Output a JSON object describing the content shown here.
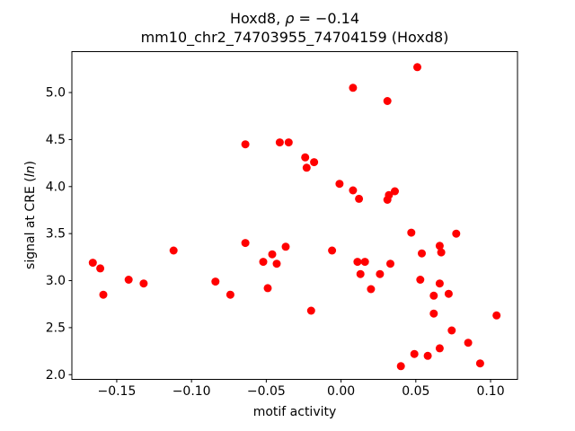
{
  "chart_data": {
    "type": "scatter",
    "title": {
      "line1_prefix": "Hoxd8, ",
      "line1_rho": "ρ",
      "line1_suffix": " = −0.14",
      "line2": "mm10_chr2_74703955_74704159 (Hoxd8)"
    },
    "xlabel": "motif activity",
    "ylabel_prefix": "signal at CRE (",
    "ylabel_italic": "ln",
    "ylabel_suffix": ")",
    "marker_color": "#ff0000",
    "axis_color": "#000000",
    "background_color": "#ffffff",
    "grid": false,
    "legend": false,
    "xlim": [
      -0.18,
      0.118
    ],
    "ylim": [
      1.95,
      5.435
    ],
    "x_ticks": [
      {
        "value": -0.15,
        "label": "−0.15"
      },
      {
        "value": -0.1,
        "label": "−0.10"
      },
      {
        "value": -0.05,
        "label": "−0.05"
      },
      {
        "value": 0.0,
        "label": "0.00"
      },
      {
        "value": 0.05,
        "label": "0.05"
      },
      {
        "value": 0.1,
        "label": "0.10"
      }
    ],
    "y_ticks": [
      {
        "value": 2.0,
        "label": "2.0"
      },
      {
        "value": 2.5,
        "label": "2.5"
      },
      {
        "value": 3.0,
        "label": "3.0"
      },
      {
        "value": 3.5,
        "label": "3.5"
      },
      {
        "value": 4.0,
        "label": "4.0"
      },
      {
        "value": 4.5,
        "label": "4.5"
      },
      {
        "value": 5.0,
        "label": "5.0"
      }
    ],
    "points": [
      [
        0.051,
        5.27
      ],
      [
        0.008,
        5.05
      ],
      [
        0.031,
        4.91
      ],
      [
        -0.064,
        4.45
      ],
      [
        -0.041,
        4.47
      ],
      [
        -0.035,
        4.47
      ],
      [
        -0.024,
        4.31
      ],
      [
        -0.018,
        4.26
      ],
      [
        -0.023,
        4.2
      ],
      [
        -0.001,
        4.03
      ],
      [
        0.008,
        3.96
      ],
      [
        0.012,
        3.87
      ],
      [
        0.036,
        3.95
      ],
      [
        0.032,
        3.91
      ],
      [
        0.031,
        3.86
      ],
      [
        -0.166,
        3.19
      ],
      [
        -0.161,
        3.13
      ],
      [
        -0.159,
        2.85
      ],
      [
        -0.142,
        3.01
      ],
      [
        -0.132,
        2.97
      ],
      [
        -0.112,
        3.32
      ],
      [
        -0.084,
        2.99
      ],
      [
        -0.074,
        2.85
      ],
      [
        -0.064,
        3.4
      ],
      [
        -0.052,
        3.2
      ],
      [
        -0.046,
        3.28
      ],
      [
        -0.043,
        3.18
      ],
      [
        -0.049,
        2.92
      ],
      [
        -0.037,
        3.36
      ],
      [
        -0.006,
        3.32
      ],
      [
        0.011,
        3.2
      ],
      [
        0.016,
        3.2
      ],
      [
        0.033,
        3.18
      ],
      [
        0.013,
        3.07
      ],
      [
        0.026,
        3.07
      ],
      [
        0.02,
        2.91
      ],
      [
        -0.02,
        2.68
      ],
      [
        0.047,
        3.51
      ],
      [
        0.077,
        3.5
      ],
      [
        0.066,
        3.37
      ],
      [
        0.067,
        3.3
      ],
      [
        0.054,
        3.29
      ],
      [
        0.053,
        3.01
      ],
      [
        0.066,
        2.97
      ],
      [
        0.062,
        2.84
      ],
      [
        0.072,
        2.86
      ],
      [
        0.062,
        2.65
      ],
      [
        0.104,
        2.63
      ],
      [
        0.074,
        2.47
      ],
      [
        0.085,
        2.34
      ],
      [
        0.066,
        2.28
      ],
      [
        0.049,
        2.22
      ],
      [
        0.058,
        2.2
      ],
      [
        0.04,
        2.09
      ],
      [
        0.093,
        2.12
      ]
    ]
  }
}
